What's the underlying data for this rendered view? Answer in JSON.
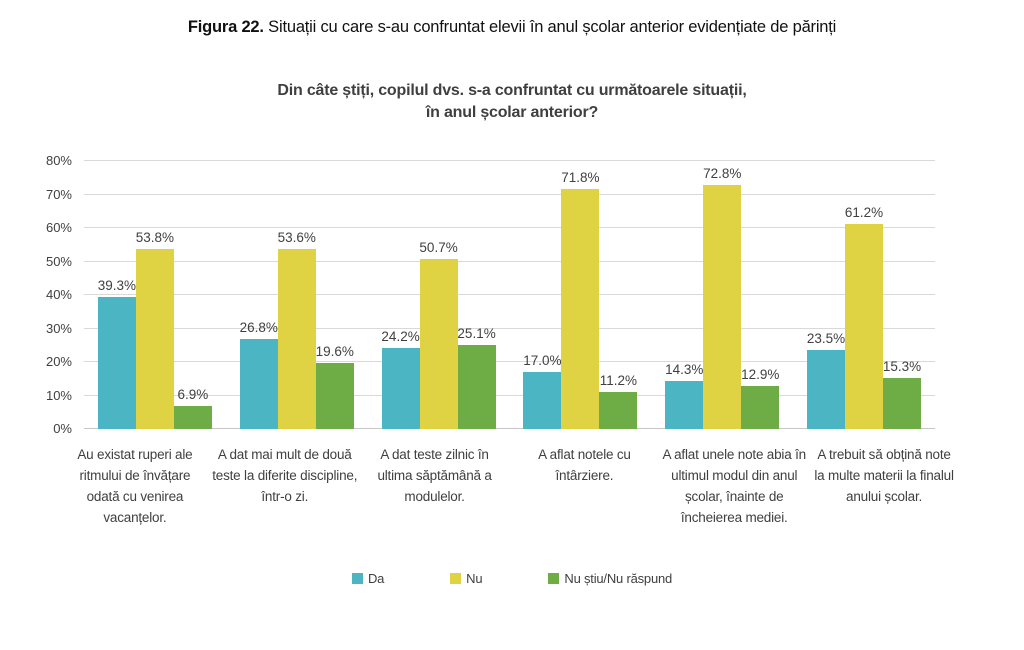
{
  "figure_caption": {
    "prefix": "Figura 22.",
    "text": " Situații cu care s-au confruntat elevii în anul școlar anterior evidențiate de părinți"
  },
  "chart_data": {
    "type": "bar",
    "title_line1": "Din câte știți, copilul dvs. s-a confruntat cu următoarele situații,",
    "title_line2": "în anul școlar anterior?",
    "categories": [
      "Au existat ruperi ale ritmului de învățare odată cu venirea vacanțelor.",
      "A dat mai mult de două teste la diferite discipline, într-o zi.",
      "A dat teste zilnic în ultima săptămână a modulelor.",
      "A aflat notele cu întârziere.",
      "A aflat unele note abia în ultimul modul din anul școlar, înainte de încheierea mediei.",
      "A trebuit să obțină note la multe materii la finalul anului școlar."
    ],
    "series": [
      {
        "name": "Da",
        "color": "#4bb5c3",
        "values": [
          39.3,
          26.8,
          24.2,
          17.0,
          14.3,
          23.5
        ],
        "labels": [
          "39.3%",
          "26.8%",
          "24.2%",
          "17.0%",
          "14.3%",
          "23.5%"
        ]
      },
      {
        "name": "Nu",
        "color": "#dfd243",
        "values": [
          53.8,
          53.6,
          50.7,
          71.8,
          72.8,
          61.2
        ],
        "labels": [
          "53.8%",
          "53.6%",
          "50.7%",
          "71.8%",
          "72.8%",
          "61.2%"
        ]
      },
      {
        "name": "Nu știu/Nu răspund",
        "color": "#6ead46",
        "values": [
          6.9,
          19.6,
          25.1,
          11.2,
          12.9,
          15.3
        ],
        "labels": [
          "6.9%",
          "19.6%",
          "25.1%",
          "11.2%",
          "12.9%",
          "15.3%"
        ]
      }
    ],
    "y_axis": {
      "min": 0,
      "max": 80,
      "step": 10,
      "tick_labels": [
        "0%",
        "10%",
        "20%",
        "30%",
        "40%",
        "50%",
        "60%",
        "70%",
        "80%"
      ]
    },
    "grid": true,
    "legend_position": "bottom",
    "grid_color": "#d9d9d9"
  }
}
